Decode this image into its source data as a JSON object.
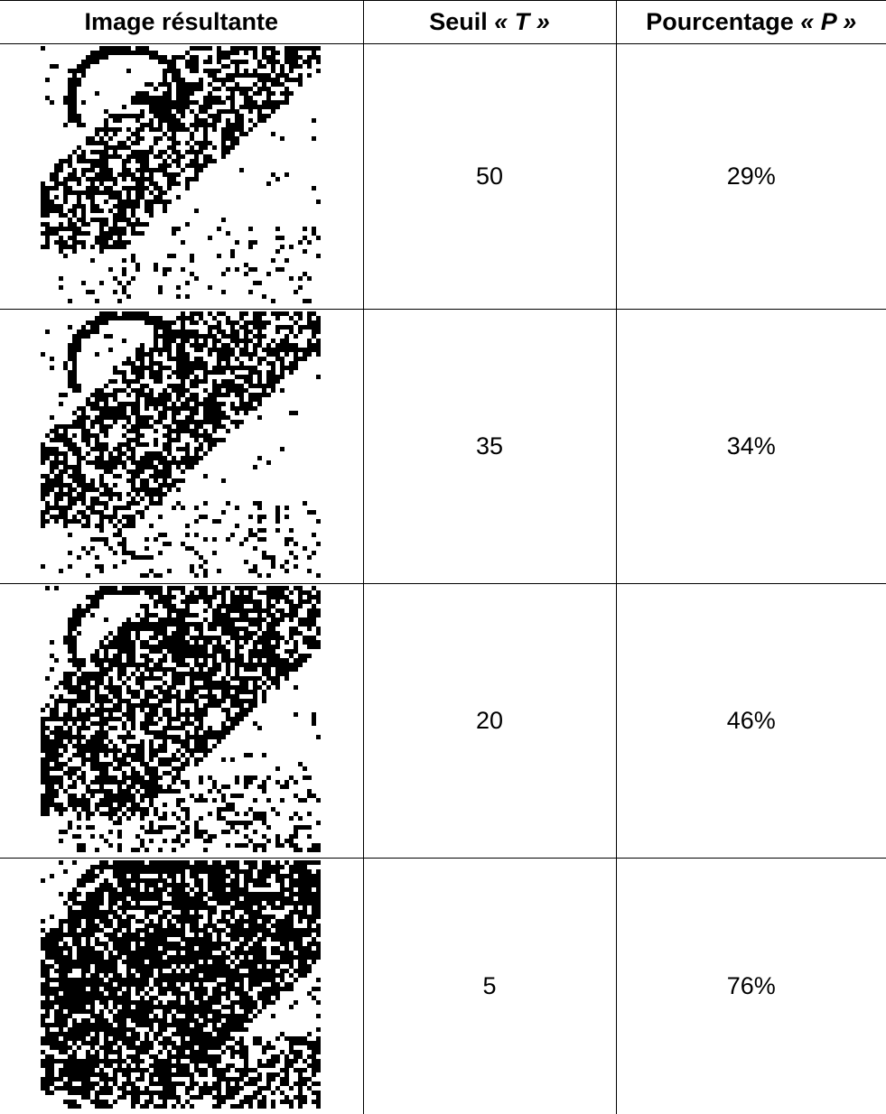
{
  "table": {
    "header": [
      {
        "text": "Image résultante"
      },
      {
        "text": "Seuil",
        "symbol": "« T »"
      },
      {
        "text": "Pourcentage",
        "symbol": "« P »"
      }
    ],
    "rows": [
      [
        "50",
        "29%"
      ],
      [
        "35",
        "34%"
      ],
      [
        "20",
        "46%"
      ],
      [
        "5",
        "76%"
      ]
    ]
  }
}
